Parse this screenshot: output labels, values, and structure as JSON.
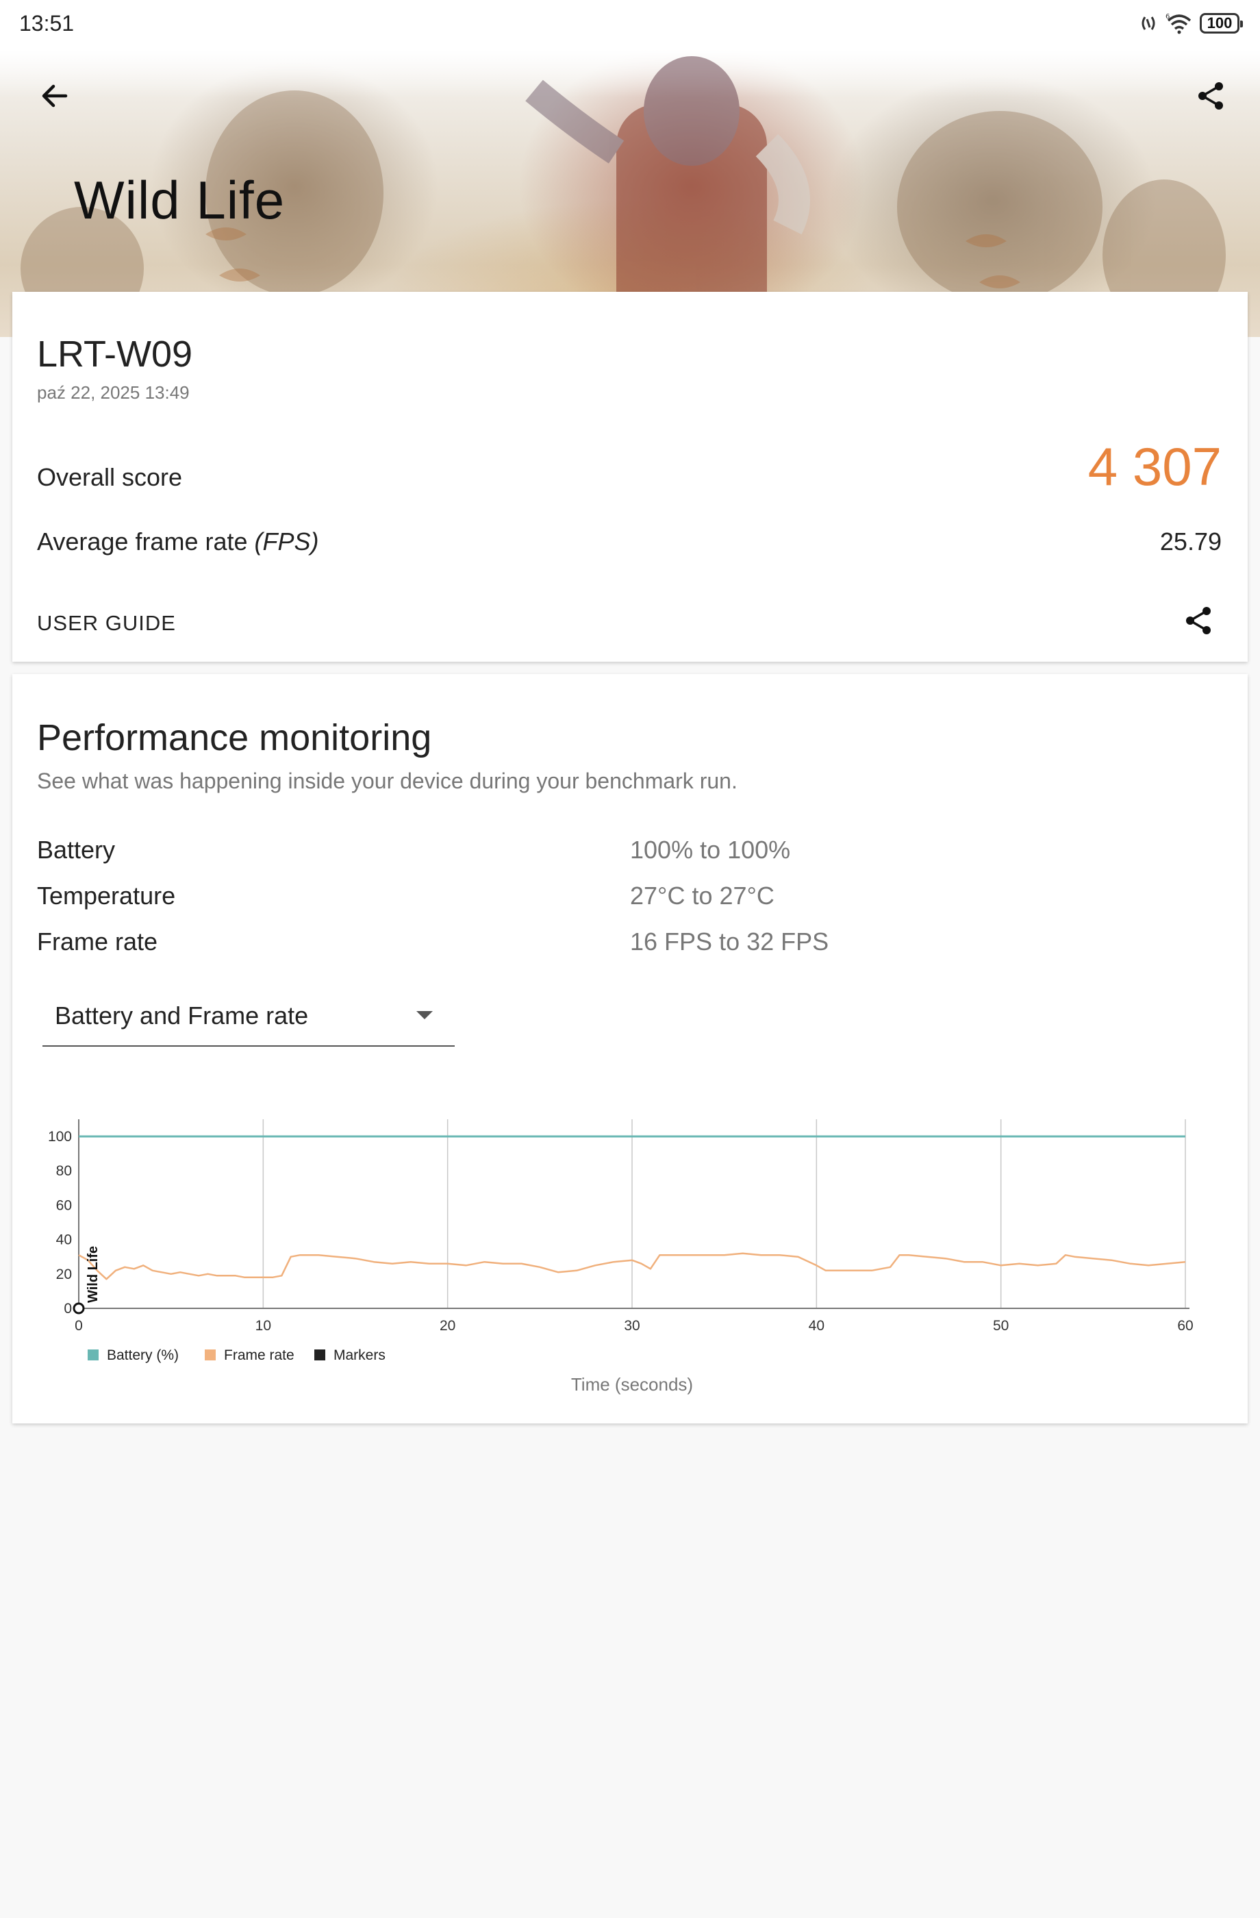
{
  "status_bar": {
    "time": "13:51",
    "battery": "100",
    "icons": [
      "nfc-icon",
      "wifi-6-icon",
      "battery-icon"
    ]
  },
  "header": {
    "title": "Wild Life",
    "back_icon": "arrow-left-icon",
    "share_icon": "share-icon"
  },
  "score_card": {
    "device_name": "LRT-W09",
    "date": "paź 22, 2025 13:49",
    "overall_label": "Overall score",
    "overall_value": "4 307",
    "fps_label": "Average frame rate ",
    "fps_unit": "(FPS)",
    "fps_value": "25.79",
    "user_guide": "USER GUIDE",
    "accent_color": "#e8843d"
  },
  "performance": {
    "title": "Performance monitoring",
    "subtitle": "See what was happening inside your device during your benchmark run.",
    "stats": [
      {
        "label": "Battery",
        "value": "100% to 100%"
      },
      {
        "label": "Temperature",
        "value": "27°C to 27°C"
      },
      {
        "label": "Frame rate",
        "value": "16 FPS to 32 FPS"
      }
    ],
    "dropdown_selected": "Battery and Frame rate"
  },
  "chart_data": {
    "type": "line",
    "xlabel": "Time (seconds)",
    "ylabel": "",
    "xlim": [
      0,
      60
    ],
    "ylim": [
      0,
      100
    ],
    "x_ticks": [
      "0",
      "10",
      "20",
      "30",
      "40",
      "50",
      "60"
    ],
    "y_ticks": [
      "0",
      "20",
      "40",
      "60",
      "80",
      "100"
    ],
    "grid": "vertical",
    "legend_position": "bottom-left",
    "marker_label": "Wild Life",
    "legend": [
      {
        "name": "Battery (%)",
        "color": "#69b7b3"
      },
      {
        "name": "Frame rate",
        "color": "#f2b27e"
      },
      {
        "name": "Markers",
        "color": "#222222"
      }
    ],
    "series": [
      {
        "name": "Battery (%)",
        "color": "#69b7b3",
        "x": [
          0,
          60
        ],
        "values": [
          100,
          100
        ]
      },
      {
        "name": "Frame rate",
        "color": "#f0b07c",
        "x": [
          0,
          0.5,
          1,
          1.5,
          2,
          2.5,
          3,
          3.5,
          4,
          4.5,
          5,
          5.5,
          6,
          6.5,
          7,
          7.5,
          8,
          8.5,
          9,
          9.5,
          10,
          10.5,
          11,
          11.5,
          12,
          13,
          14,
          15,
          16,
          17,
          18,
          19,
          20,
          21,
          22,
          23,
          24,
          25,
          26,
          27,
          28,
          29,
          30,
          30.5,
          31,
          31.5,
          32,
          33,
          34,
          35,
          36,
          37,
          38,
          39,
          40,
          40.5,
          41,
          42,
          43,
          44,
          44.5,
          45,
          46,
          47,
          48,
          49,
          50,
          51,
          52,
          53,
          53.5,
          54,
          55,
          56,
          57,
          58,
          59,
          60
        ],
        "values": [
          31,
          28,
          22,
          17,
          22,
          24,
          23,
          25,
          22,
          21,
          20,
          21,
          20,
          19,
          20,
          19,
          19,
          19,
          18,
          18,
          18,
          18,
          19,
          30,
          31,
          31,
          30,
          29,
          27,
          26,
          27,
          26,
          26,
          25,
          27,
          26,
          26,
          24,
          21,
          22,
          25,
          27,
          28,
          26,
          23,
          31,
          31,
          31,
          31,
          31,
          32,
          31,
          31,
          30,
          25,
          22,
          22,
          22,
          22,
          24,
          31,
          31,
          30,
          29,
          27,
          27,
          25,
          26,
          25,
          26,
          31,
          30,
          29,
          28,
          26,
          25,
          26,
          27
        ]
      }
    ]
  }
}
